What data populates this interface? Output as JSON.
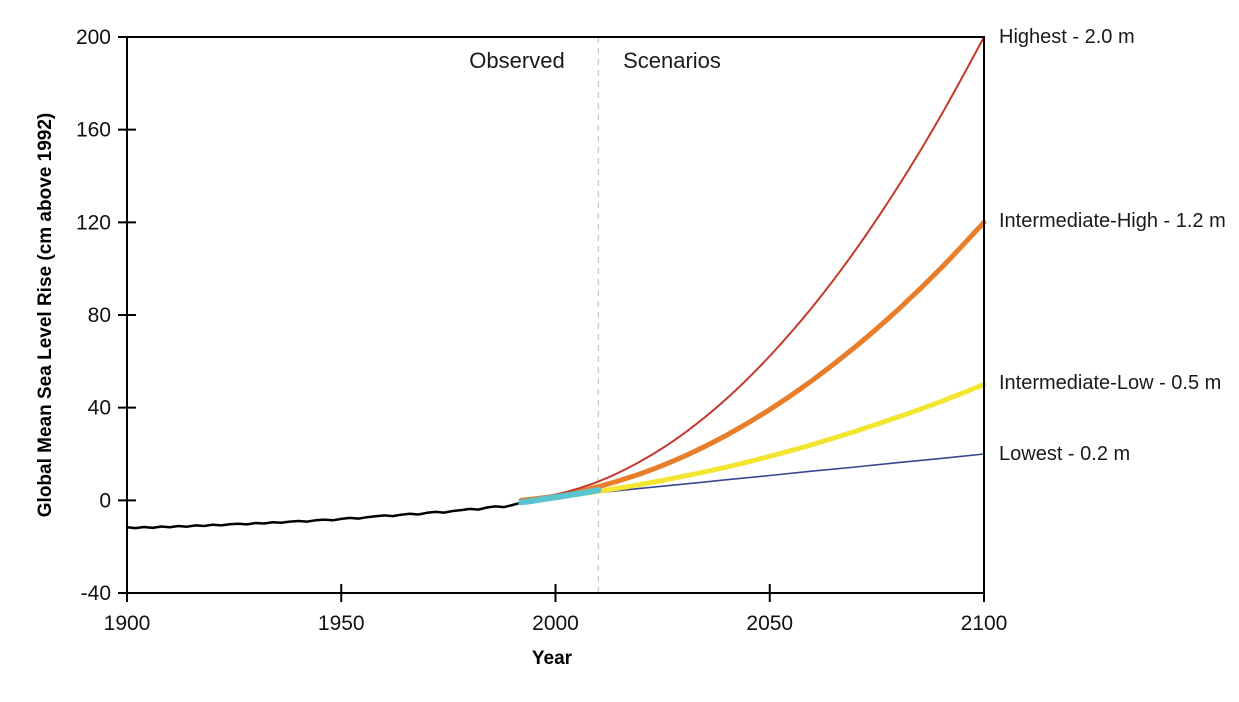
{
  "annotations": {
    "observed": "Observed",
    "scenarios": "Scenarios"
  },
  "chart_data": {
    "type": "line",
    "title": "",
    "xlabel": "Year",
    "ylabel": "Global Mean Sea Level Rise (cm above 1992)",
    "xlim": [
      1900,
      2100
    ],
    "ylim": [
      -40,
      200
    ],
    "x_ticks": [
      1900,
      1950,
      2000,
      2050,
      2100
    ],
    "y_ticks": [
      200,
      160,
      120,
      80,
      40,
      0,
      -40
    ],
    "grid": false,
    "legend_position": "right-of-line-endpoints",
    "divider": {
      "year": 2010,
      "style": "dashed",
      "color": "#cccccc"
    },
    "region_labels": {
      "left_of_divider": "Observed",
      "right_of_divider": "Scenarios"
    },
    "series": [
      {
        "name": "Observed (tide gauge record)",
        "color": "#000000",
        "width": 2.5,
        "smooth": false,
        "points": [
          [
            1900,
            -11.6
          ],
          [
            1902,
            -12.0
          ],
          [
            1904,
            -11.5
          ],
          [
            1906,
            -11.9
          ],
          [
            1908,
            -11.3
          ],
          [
            1910,
            -11.6
          ],
          [
            1912,
            -11.1
          ],
          [
            1914,
            -11.4
          ],
          [
            1916,
            -10.8
          ],
          [
            1918,
            -11.1
          ],
          [
            1920,
            -10.5
          ],
          [
            1922,
            -10.8
          ],
          [
            1924,
            -10.3
          ],
          [
            1926,
            -10.1
          ],
          [
            1928,
            -10.4
          ],
          [
            1930,
            -9.8
          ],
          [
            1932,
            -10.0
          ],
          [
            1934,
            -9.5
          ],
          [
            1936,
            -9.7
          ],
          [
            1938,
            -9.2
          ],
          [
            1940,
            -8.9
          ],
          [
            1942,
            -9.2
          ],
          [
            1944,
            -8.6
          ],
          [
            1946,
            -8.3
          ],
          [
            1948,
            -8.6
          ],
          [
            1950,
            -8.0
          ],
          [
            1952,
            -7.6
          ],
          [
            1954,
            -7.9
          ],
          [
            1956,
            -7.3
          ],
          [
            1958,
            -6.9
          ],
          [
            1960,
            -6.5
          ],
          [
            1962,
            -6.8
          ],
          [
            1964,
            -6.2
          ],
          [
            1966,
            -5.8
          ],
          [
            1968,
            -6.1
          ],
          [
            1970,
            -5.4
          ],
          [
            1972,
            -5.0
          ],
          [
            1974,
            -5.3
          ],
          [
            1976,
            -4.6
          ],
          [
            1978,
            -4.2
          ],
          [
            1980,
            -3.7
          ],
          [
            1982,
            -4.0
          ],
          [
            1984,
            -3.1
          ],
          [
            1986,
            -2.6
          ],
          [
            1988,
            -2.9
          ],
          [
            1990,
            -2.0
          ],
          [
            1992,
            -1.0
          ]
        ]
      },
      {
        "name": "Observed (satellite era)",
        "color": "#5bc4ce",
        "width": 6,
        "smooth": false,
        "points": [
          [
            1992,
            -0.9
          ],
          [
            1995,
            -0.1
          ],
          [
            1998,
            0.8
          ],
          [
            2001,
            1.6
          ],
          [
            2004,
            2.5
          ],
          [
            2007,
            3.4
          ],
          [
            2010,
            4.4
          ]
        ]
      },
      {
        "name": "Highest scenario",
        "label": "Highest - 2.0 m",
        "color": "#c4392e",
        "width": 2,
        "smooth": true,
        "points": [
          [
            1992,
            0
          ],
          [
            2000,
            2.4
          ],
          [
            2010,
            8.1
          ],
          [
            2020,
            17.0
          ],
          [
            2030,
            28.9
          ],
          [
            2040,
            44.0
          ],
          [
            2050,
            62.3
          ],
          [
            2060,
            83.6
          ],
          [
            2070,
            108.0
          ],
          [
            2080,
            135.6
          ],
          [
            2090,
            166.2
          ],
          [
            2100,
            200.0
          ]
        ]
      },
      {
        "name": "Intermediate-High scenario",
        "label": "Intermediate-High - 1.2 m",
        "color": "#e87e2a",
        "width": 5,
        "smooth": true,
        "points": [
          [
            1992,
            0
          ],
          [
            2000,
            1.9
          ],
          [
            2010,
            5.9
          ],
          [
            2020,
            11.6
          ],
          [
            2030,
            19.0
          ],
          [
            2040,
            28.2
          ],
          [
            2050,
            39.2
          ],
          [
            2060,
            51.9
          ],
          [
            2070,
            66.3
          ],
          [
            2080,
            82.4
          ],
          [
            2090,
            100.3
          ],
          [
            2100,
            120.0
          ]
        ]
      },
      {
        "name": "Intermediate-Low scenario",
        "label": "Intermediate-Low - 0.5 m",
        "color": "#f2e631",
        "width": 5,
        "smooth": true,
        "points": [
          [
            1992,
            0
          ],
          [
            2000,
            1.5
          ],
          [
            2010,
            3.9
          ],
          [
            2020,
            6.9
          ],
          [
            2030,
            10.4
          ],
          [
            2040,
            14.4
          ],
          [
            2050,
            19.0
          ],
          [
            2060,
            24.1
          ],
          [
            2070,
            29.8
          ],
          [
            2080,
            36.0
          ],
          [
            2090,
            42.7
          ],
          [
            2100,
            50.0
          ]
        ]
      },
      {
        "name": "Lowest scenario",
        "label": "Lowest - 0.2 m",
        "color": "#38488c",
        "width": 1.6,
        "smooth": true,
        "points": [
          [
            1992,
            0
          ],
          [
            2000,
            1.5
          ],
          [
            2010,
            3.3
          ],
          [
            2020,
            5.2
          ],
          [
            2030,
            7.0
          ],
          [
            2040,
            8.9
          ],
          [
            2050,
            10.7
          ],
          [
            2060,
            12.6
          ],
          [
            2070,
            14.4
          ],
          [
            2080,
            16.3
          ],
          [
            2090,
            18.1
          ],
          [
            2100,
            20.0
          ]
        ]
      }
    ]
  }
}
